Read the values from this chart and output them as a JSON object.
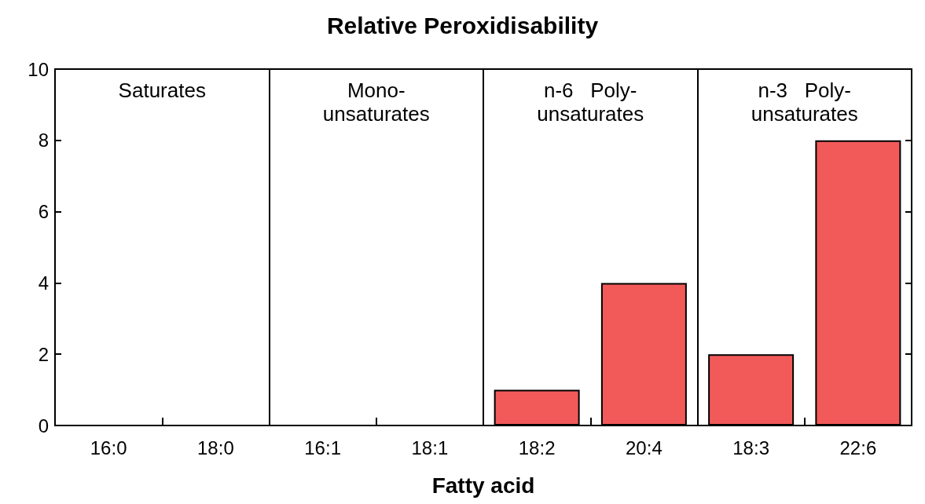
{
  "chart_data": {
    "type": "bar",
    "title": "Relative Peroxidisability",
    "xlabel": "Fatty acid",
    "categories": [
      "16:0",
      "18:0",
      "16:1",
      "18:1",
      "18:2",
      "20:4",
      "18:3",
      "22:6"
    ],
    "values": [
      0,
      0,
      0,
      0,
      1,
      4,
      2,
      8
    ],
    "color": "#f25a5a",
    "ylim": [
      0,
      10
    ],
    "yticks": [
      0,
      2,
      4,
      6,
      8,
      10
    ],
    "annotations": [
      "Saturates",
      "Mono-\nunsaturates",
      "n-6   Poly-\nunsaturates",
      "n-3   Poly-\nunsaturates"
    ]
  }
}
